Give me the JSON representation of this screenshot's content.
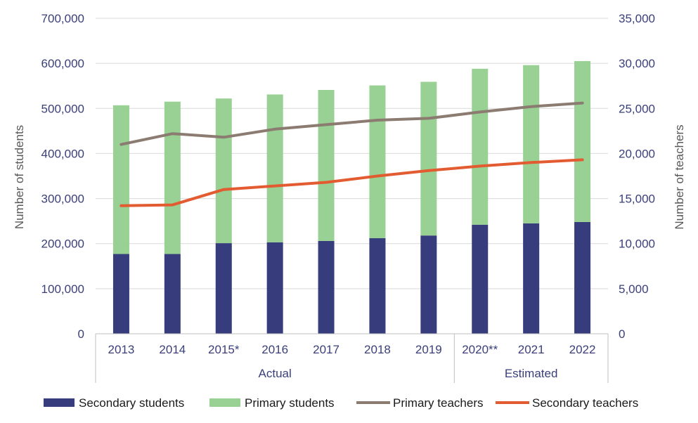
{
  "chart_data": {
    "type": "bar",
    "categories": [
      "2013",
      "2014",
      "2015*",
      "2016",
      "2017",
      "2018",
      "2019",
      "2020**",
      "2021",
      "2022"
    ],
    "groups": [
      {
        "label": "Actual",
        "start": 0,
        "end": 6
      },
      {
        "label": "Estimated",
        "start": 7,
        "end": 9
      }
    ],
    "ylabel": "Number of students",
    "y2label": "Number of teachers",
    "ylim": [
      0,
      700000
    ],
    "y2lim": [
      0,
      35000
    ],
    "yticks": [
      "0",
      "100,000",
      "200,000",
      "300,000",
      "400,000",
      "500,000",
      "600,000",
      "700,000"
    ],
    "y2ticks": [
      "0",
      "5,000",
      "10,000",
      "15,000",
      "20,000",
      "25,000",
      "30,000",
      "35,000"
    ],
    "grid": true,
    "legend_position": "bottom",
    "stacked": true,
    "series": [
      {
        "name": "Secondary students",
        "kind": "bar",
        "axis": "left",
        "color": "#363c7c",
        "values": [
          177000,
          177000,
          201000,
          203000,
          206000,
          212000,
          218000,
          242000,
          245000,
          248000
        ]
      },
      {
        "name": "Primary students",
        "kind": "bar",
        "axis": "left",
        "color": "#98d193",
        "values": [
          330000,
          338000,
          321000,
          328000,
          335000,
          339000,
          341000,
          346000,
          351000,
          357000
        ]
      },
      {
        "name": "Primary teachers",
        "kind": "line",
        "axis": "right",
        "color": "#8b7b70",
        "values": [
          21000,
          22200,
          21800,
          22700,
          23200,
          23700,
          23900,
          24600,
          25200,
          25600
        ]
      },
      {
        "name": "Secondary teachers",
        "kind": "line",
        "axis": "right",
        "color": "#e35b31",
        "values": [
          14200,
          14300,
          16000,
          16400,
          16800,
          17500,
          18100,
          18600,
          19000,
          19300
        ]
      }
    ]
  }
}
